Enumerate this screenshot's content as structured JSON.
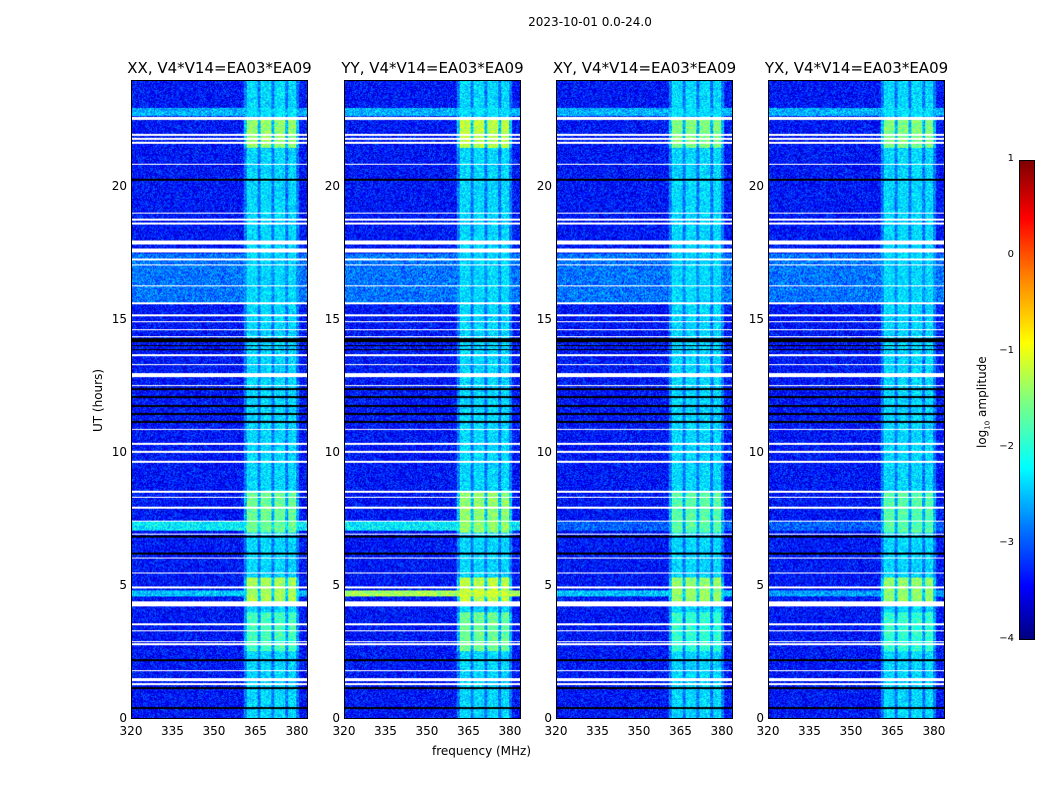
{
  "suptitle": "2023-10-01 0.0-24.0",
  "chart_data": {
    "type": "heatmap",
    "xlabel": "frequency (MHz)",
    "ylabel": "UT (hours)",
    "xlim": [
      320,
      384
    ],
    "ylim": [
      0,
      24
    ],
    "xticks": [
      320,
      335,
      350,
      365,
      380
    ],
    "yticks": [
      0,
      5,
      10,
      15,
      20
    ],
    "panels": [
      {
        "title": "XX, V4*V14=EA03*EA09",
        "pol": "XX"
      },
      {
        "title": "YY, V4*V14=EA03*EA09",
        "pol": "YY"
      },
      {
        "title": "XY, V4*V14=EA03*EA09",
        "pol": "XY"
      },
      {
        "title": "YX, V4*V14=EA03*EA09",
        "pol": "YX"
      }
    ],
    "colorbar": {
      "label": "log10 amplitude",
      "range": [
        -4,
        1
      ],
      "ticks": [
        "1",
        "0",
        "−1",
        "−2",
        "−3",
        "−4"
      ],
      "colormap": "jet"
    },
    "background_log_amplitude": -3.3,
    "signal_bands_mhz": [
      [
        362,
        366
      ],
      [
        367,
        371
      ],
      [
        372,
        376
      ],
      [
        377,
        380
      ]
    ],
    "flagged_hours": [
      [
        22.55,
        22.65
      ],
      [
        21.95,
        22.0
      ],
      [
        21.8,
        21.85
      ],
      [
        21.65,
        21.7
      ],
      [
        20.85,
        20.9
      ],
      [
        19.0,
        19.05
      ],
      [
        18.75,
        18.8
      ],
      [
        18.6,
        18.65
      ],
      [
        17.85,
        18.0
      ],
      [
        17.55,
        17.7
      ],
      [
        17.25,
        17.3
      ],
      [
        17.05,
        17.1
      ],
      [
        16.25,
        16.3
      ],
      [
        15.6,
        15.65
      ],
      [
        15.15,
        15.2
      ],
      [
        14.9,
        14.95
      ],
      [
        14.6,
        14.65
      ],
      [
        14.35,
        14.4
      ],
      [
        13.65,
        13.7
      ],
      [
        13.3,
        13.35
      ],
      [
        12.85,
        13.0
      ],
      [
        12.5,
        12.55
      ],
      [
        10.85,
        10.9
      ],
      [
        10.3,
        10.35
      ],
      [
        10.0,
        10.05
      ],
      [
        9.6,
        9.7
      ],
      [
        8.5,
        8.55
      ],
      [
        8.3,
        8.35
      ],
      [
        7.9,
        7.95
      ],
      [
        7.4,
        7.45
      ],
      [
        6.9,
        6.95
      ],
      [
        6.0,
        6.05
      ],
      [
        5.45,
        5.5
      ],
      [
        4.9,
        4.95
      ],
      [
        4.2,
        4.4
      ],
      [
        3.5,
        3.55
      ],
      [
        3.25,
        3.3
      ],
      [
        2.85,
        2.9
      ],
      [
        2.75,
        2.8
      ],
      [
        1.75,
        1.8
      ],
      [
        1.4,
        1.5
      ],
      [
        1.25,
        1.3
      ]
    ],
    "zero_hours": [
      [
        20.25,
        20.33
      ],
      [
        13.85,
        13.9
      ],
      [
        14.0,
        14.05
      ],
      [
        14.15,
        14.3
      ],
      [
        12.35,
        12.45
      ],
      [
        12.05,
        12.15
      ],
      [
        11.7,
        11.8
      ],
      [
        11.4,
        11.5
      ],
      [
        11.1,
        11.2
      ],
      [
        6.8,
        6.88
      ],
      [
        6.15,
        6.22
      ],
      [
        2.15,
        2.2
      ],
      [
        1.1,
        1.15
      ],
      [
        0.35,
        0.42
      ]
    ],
    "bright_hours": [
      {
        "range": [
          21.5,
          22.6
        ],
        "boost": [
          0.9,
          1.1,
          0.8,
          0.8
        ]
      },
      {
        "range": [
          4.4,
          5.3
        ],
        "boost": [
          1.0,
          1.1,
          0.9,
          0.9
        ]
      },
      {
        "range": [
          7.0,
          8.5
        ],
        "boost": [
          0.7,
          0.9,
          0.6,
          0.6
        ]
      },
      {
        "range": [
          2.5,
          4.0
        ],
        "boost": [
          0.5,
          0.7,
          0.4,
          0.4
        ]
      }
    ],
    "broadband_rfi": [
      {
        "range": [
          22.7,
          23.0
        ],
        "level": [
          -2.5,
          -2.5,
          -2.5,
          -2.5
        ]
      },
      {
        "range": [
          7.05,
          7.4
        ],
        "level": [
          -2.2,
          -2.2,
          -2.9,
          -2.9
        ]
      },
      {
        "range": [
          4.6,
          4.8
        ],
        "level": [
          -2.4,
          -1.3,
          -2.4,
          -2.6
        ]
      },
      {
        "range": [
          15.6,
          17.5
        ],
        "level": [
          -2.8,
          -2.8,
          -2.8,
          -2.8
        ]
      }
    ]
  }
}
